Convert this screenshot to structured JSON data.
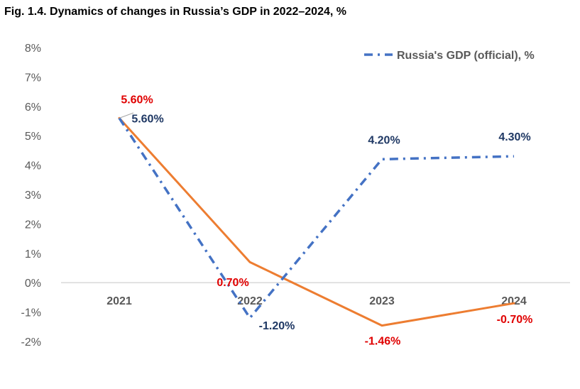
{
  "title": "Fig. 1.4. Dynamics of changes in Russia’s GDP in 2022–2024, %",
  "colors": {
    "official": "#4472C4",
    "alternative": "#ED7D31",
    "official_label": "#1F3864",
    "alternative_label": "#E00000",
    "axis": "#D9D9D9",
    "text": "#595959"
  },
  "chart_data": {
    "type": "line",
    "title": "Fig. 1.4. Dynamics of changes in Russia’s GDP in 2022–2024, %",
    "categories": [
      "2021",
      "2022",
      "2023",
      "2024"
    ],
    "ylim": [
      -2,
      8
    ],
    "yticks": [
      "-2%",
      "-1%",
      "0%",
      "1%",
      "2%",
      "3%",
      "4%",
      "5%",
      "6%",
      "7%",
      "8%"
    ],
    "grid": false,
    "legend": "top-right",
    "series": [
      {
        "name": "Russia's GDP (official), %",
        "values": [
          5.6,
          -1.2,
          4.2,
          4.3
        ],
        "labels": [
          "5.60%",
          "-1.20%",
          "4.20%",
          "4.30%"
        ],
        "style": "dash-dot"
      },
      {
        "name": "",
        "values": [
          5.6,
          0.7,
          -1.46,
          -0.7
        ],
        "labels": [
          "5.60%",
          "0.70%",
          "-1.46%",
          "-0.70%"
        ],
        "style": "solid"
      }
    ]
  }
}
